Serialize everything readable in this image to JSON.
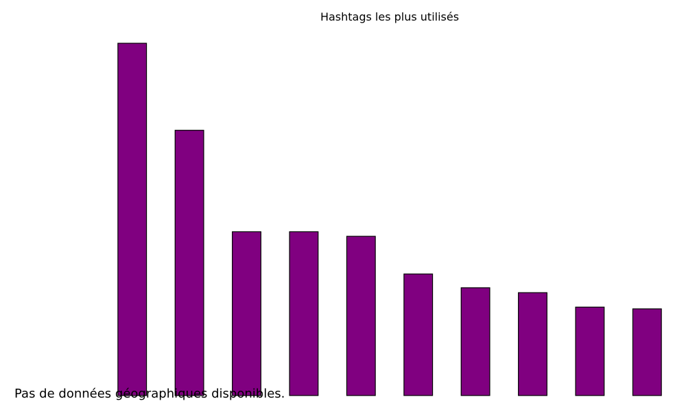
{
  "chart_data": {
    "type": "bar",
    "title": "Hashtags les plus utilisés",
    "xlabel": "",
    "ylabel": "",
    "categories": [
      "",
      "",
      "",
      "",
      "",
      "",
      "",
      "",
      "",
      ""
    ],
    "values": [
      100,
      75.3,
      46.5,
      46.5,
      45.2,
      34.5,
      30.6,
      29.2,
      25.1,
      24.6
    ],
    "ylim": [
      0,
      100
    ],
    "grid": false,
    "axes_visible": false,
    "colors": {
      "bar_fill": "#800080",
      "bar_edge": "#000000"
    }
  },
  "message": {
    "no_geo_data": "Pas de données géographiques disponibles."
  }
}
